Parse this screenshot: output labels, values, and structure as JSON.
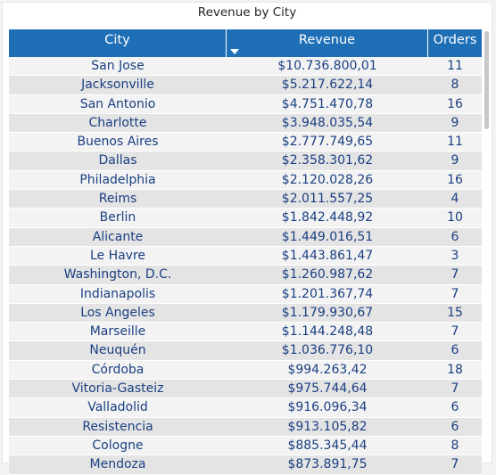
{
  "title": "Revenue by City",
  "columns": {
    "city": "City",
    "revenue": "Revenue",
    "orders": "Orders"
  },
  "rows": [
    {
      "city": "San Jose",
      "revenue": "$10.736.800,01",
      "orders": "11"
    },
    {
      "city": "Jacksonville",
      "revenue": "$5.217.622,14",
      "orders": "8"
    },
    {
      "city": "San Antonio",
      "revenue": "$4.751.470,78",
      "orders": "16"
    },
    {
      "city": "Charlotte",
      "revenue": "$3.948.035,54",
      "orders": "9"
    },
    {
      "city": "Buenos Aires",
      "revenue": "$2.777.749,65",
      "orders": "11"
    },
    {
      "city": "Dallas",
      "revenue": "$2.358.301,62",
      "orders": "9"
    },
    {
      "city": "Philadelphia",
      "revenue": "$2.120.028,26",
      "orders": "16"
    },
    {
      "city": "Reims",
      "revenue": "$2.011.557,25",
      "orders": "4"
    },
    {
      "city": "Berlin",
      "revenue": "$1.842.448,92",
      "orders": "10"
    },
    {
      "city": "Alicante",
      "revenue": "$1.449.016,51",
      "orders": "6"
    },
    {
      "city": "Le Havre",
      "revenue": "$1.443.861,47",
      "orders": "3"
    },
    {
      "city": "Washington, D.C.",
      "revenue": "$1.260.987,62",
      "orders": "7"
    },
    {
      "city": "Indianapolis",
      "revenue": "$1.201.367,74",
      "orders": "7"
    },
    {
      "city": "Los Angeles",
      "revenue": "$1.179.930,67",
      "orders": "15"
    },
    {
      "city": "Marseille",
      "revenue": "$1.144.248,48",
      "orders": "7"
    },
    {
      "city": "Neuquén",
      "revenue": "$1.036.776,10",
      "orders": "6"
    },
    {
      "city": "Córdoba",
      "revenue": "$994.263,42",
      "orders": "18"
    },
    {
      "city": "Vitoria-Gasteiz",
      "revenue": "$975.744,64",
      "orders": "7"
    },
    {
      "city": "Valladolid",
      "revenue": "$916.096,34",
      "orders": "6"
    },
    {
      "city": "Resistencia",
      "revenue": "$913.105,82",
      "orders": "6"
    },
    {
      "city": "Cologne",
      "revenue": "$885.345,44",
      "orders": "8"
    },
    {
      "city": "Mendoza",
      "revenue": "$873.891,75",
      "orders": "7"
    }
  ],
  "colors": {
    "header": "#1f6fb7",
    "row_text": "#1a3f82"
  },
  "icons": {
    "sort": "sort-descending-icon"
  }
}
